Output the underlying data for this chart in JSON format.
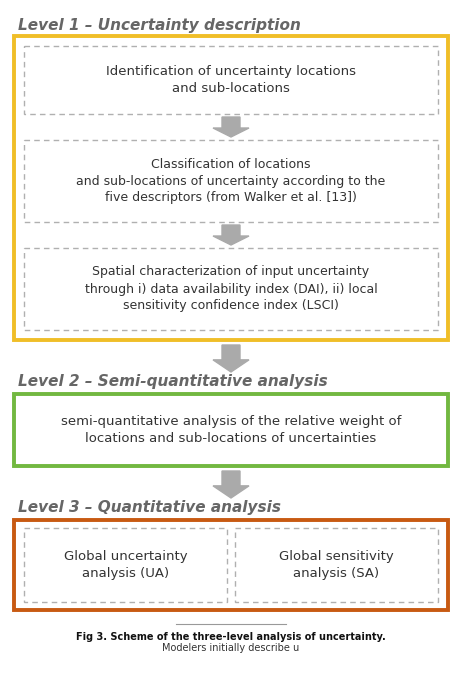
{
  "bg_color": "#ffffff",
  "fig_width": 4.62,
  "fig_height": 6.9,
  "dpi": 100,
  "level1_title": "Level 1 – Uncertainty description",
  "level2_title": "Level 2 – Semi-quantitative analysis",
  "level3_title": "Level 3 – Quantitative analysis",
  "level1_border_color": "#F0BE28",
  "level2_border_color": "#72B840",
  "level3_border_color": "#C85A12",
  "box1_text": "Identification of uncertainty locations\nand sub-locations",
  "box2_text": "Classification of locations\nand sub-locations of uncertainty according to the\nfive descriptors (from Walker et al. [13])",
  "box3_text": "Spatial characterization of input uncertainty\nthrough i) data availability index (DAI), ii) local\nsensitivity confidence index (LSCI)",
  "box4_text": "semi-quantitative analysis of the relative weight of\nlocations and sub-locations of uncertainties",
  "box5a_text": "Global uncertainty\nanalysis (UA)",
  "box5b_text": "Global sensitivity\nanalysis (SA)",
  "dashed_box_edge": "#b0b0b0",
  "dashed_box_face": "#ffffff",
  "arrow_color": "#aaaaaa",
  "title_color": "#666666",
  "text_color": "#333333",
  "caption_bold": "Fig 3. Scheme of the three-level analysis of uncertainty.",
  "caption_normal": " Modelers initially describe u",
  "caption_fontsize": 7.0
}
